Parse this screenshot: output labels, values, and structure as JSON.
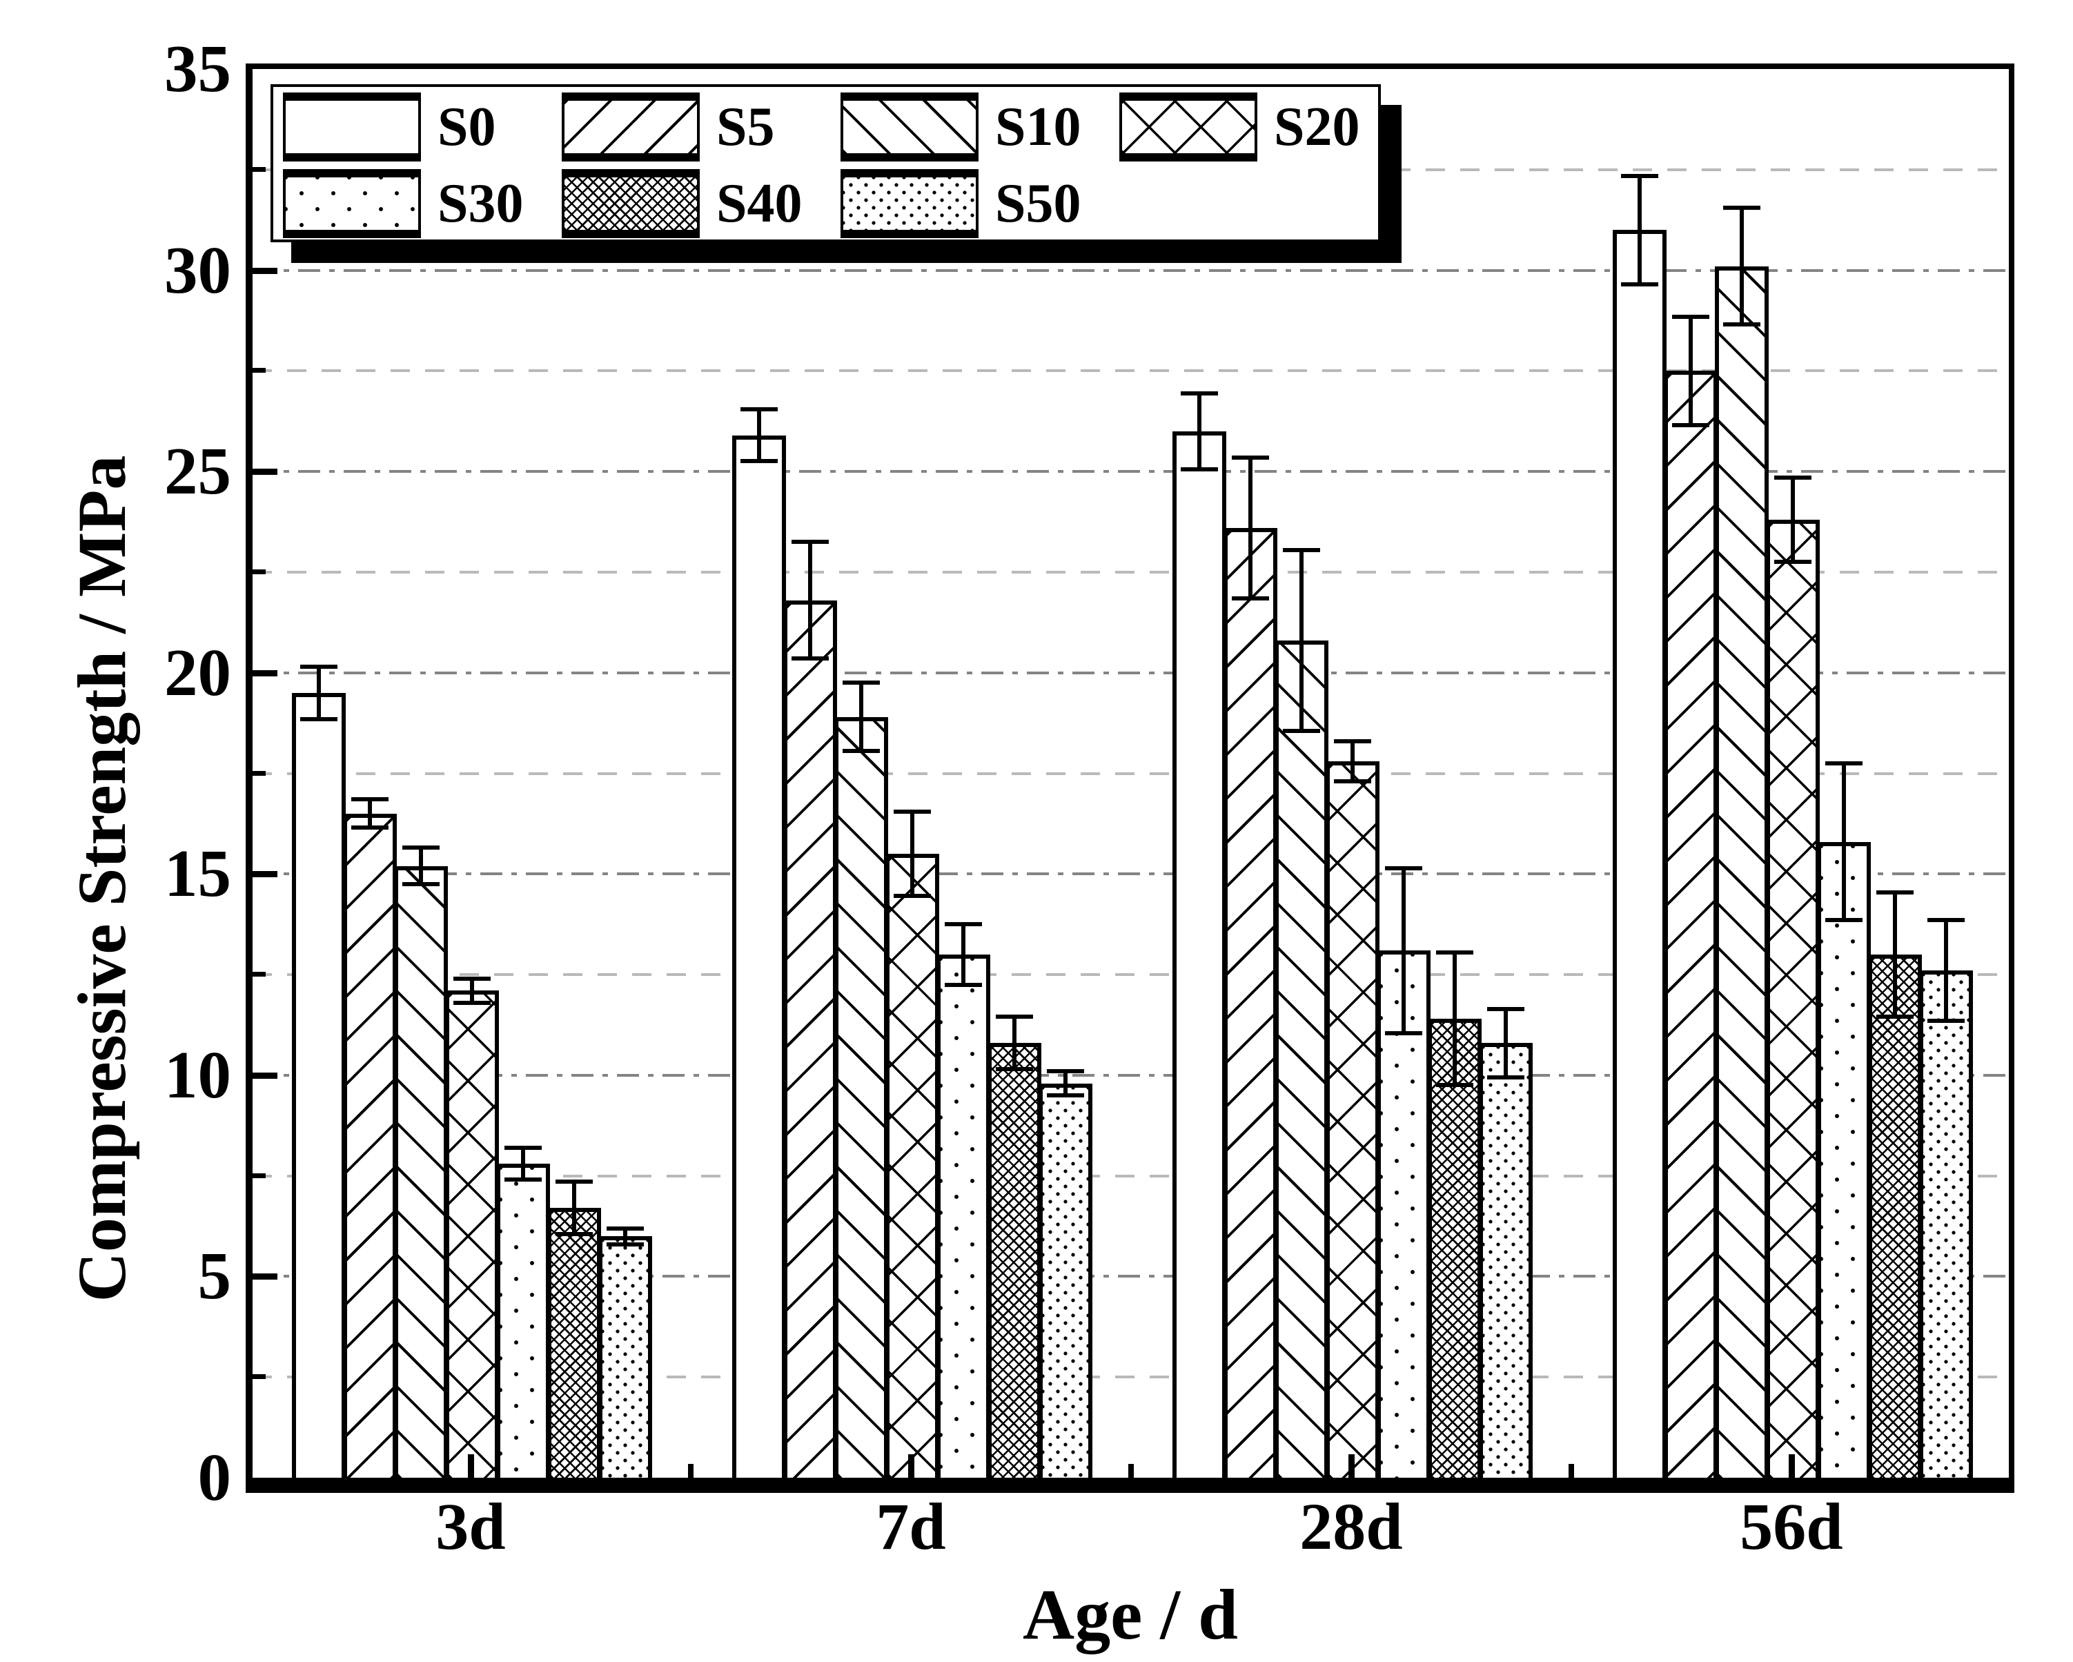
{
  "colors": {
    "foreground": "#000000",
    "background": "#ffffff",
    "grid_major": "#848484",
    "grid_minor": "#b9b9b9"
  },
  "chart_data": {
    "type": "bar",
    "title": "",
    "xlabel": "Age / d",
    "ylabel": "Compressive Strength / MPa",
    "categories": [
      "3d",
      "7d",
      "28d",
      "56d"
    ],
    "series": [
      {
        "name": "S0",
        "pattern": "plain",
        "values": [
          19.5,
          25.9,
          26.0,
          31.0
        ],
        "errors": [
          0.7,
          0.7,
          1.0,
          1.4
        ]
      },
      {
        "name": "S5",
        "pattern": "diag-forward",
        "values": [
          16.5,
          21.8,
          23.6,
          27.5
        ],
        "errors": [
          0.4,
          1.5,
          1.8,
          1.4
        ]
      },
      {
        "name": "S10",
        "pattern": "diag-backward",
        "values": [
          15.2,
          18.9,
          20.8,
          30.1
        ],
        "errors": [
          0.5,
          0.9,
          2.3,
          1.5
        ]
      },
      {
        "name": "S20",
        "pattern": "diamond-cross",
        "values": [
          12.1,
          15.5,
          17.8,
          23.8
        ],
        "errors": [
          0.35,
          1.1,
          0.55,
          1.1
        ]
      },
      {
        "name": "S30",
        "pattern": "dots-sparse",
        "values": [
          7.8,
          13.0,
          13.1,
          15.8
        ],
        "errors": [
          0.45,
          0.8,
          2.1,
          2.0
        ]
      },
      {
        "name": "S40",
        "pattern": "mesh-fine",
        "values": [
          6.7,
          10.8,
          11.4,
          13.0
        ],
        "errors": [
          0.7,
          0.7,
          1.7,
          1.6
        ]
      },
      {
        "name": "S50",
        "pattern": "dots-dense",
        "values": [
          6.0,
          9.8,
          10.8,
          12.6
        ],
        "errors": [
          0.25,
          0.35,
          0.9,
          1.3
        ]
      }
    ],
    "ylim": [
      0,
      35
    ],
    "ytick_major": [
      0,
      5,
      10,
      15,
      20,
      25,
      30,
      35
    ],
    "ytick_minor_step": 2.5,
    "grid": {
      "orientation": "horizontal",
      "major_style": "dash-dot",
      "minor_style": "dashed"
    },
    "legend": {
      "position": "top-left",
      "rows": [
        [
          "S0",
          "S5",
          "S10",
          "S20"
        ],
        [
          "S30",
          "S40",
          "S50"
        ]
      ]
    },
    "error_bars": true
  }
}
